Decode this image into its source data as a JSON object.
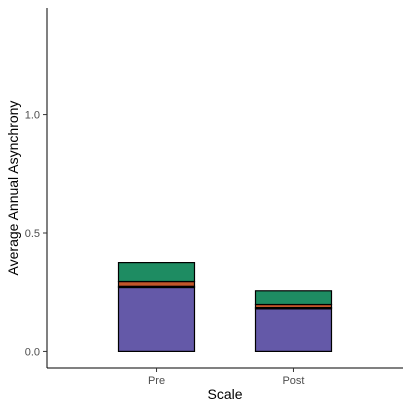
{
  "chart_data": {
    "type": "bar",
    "stacked": true,
    "xlabel": "Scale",
    "ylabel": "Average Annual Asynchrony",
    "categories": [
      "Pre",
      "Post"
    ],
    "ylim": [
      -0.07,
      1.45
    ],
    "yticks": [
      0.0,
      0.5,
      1.0
    ],
    "ytick_labels": [
      "0.0",
      "0.5",
      "1.0"
    ],
    "grid": false,
    "legend": "none",
    "series": [
      {
        "color": "#6459a8",
        "values": [
          0.27,
          0.18
        ]
      },
      {
        "color": "#111111",
        "values": [
          0.005,
          0.005
        ]
      },
      {
        "color": "#c2562a",
        "values": [
          0.02,
          0.013
        ]
      },
      {
        "color": "#1e8c62",
        "values": [
          0.08,
          0.058
        ]
      }
    ]
  }
}
